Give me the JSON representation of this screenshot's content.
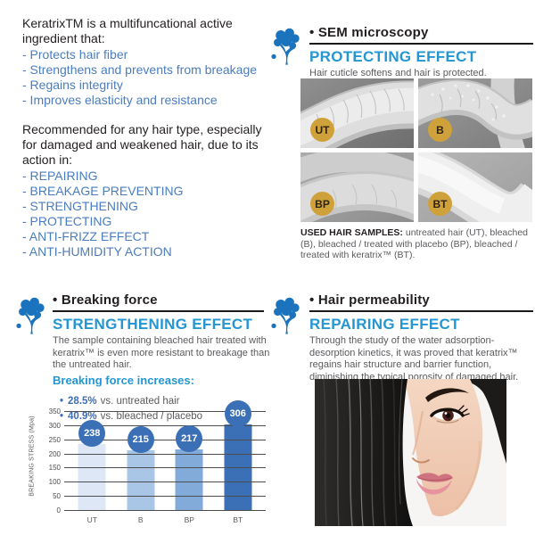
{
  "ui": {
    "bullet": "•"
  },
  "intro": {
    "para1": "KeratrixTM is a multifuncational active ingredient that:",
    "list1": [
      "- Protects hair fiber",
      "- Strengthens and prevents from breakage",
      "- Regains integrity",
      "- Improves elasticity and resistance"
    ],
    "para2": "Recommended for any hair type, especially for damaged and weakened hair, due to its action in:",
    "list2": [
      "- REPAIRING",
      "- BREAKAGE PREVENTING",
      "- STRENGTHENING",
      "- PROTECTING",
      "- ANTI-FRIZZ EFFECT",
      "- ANTI-HUMIDITY ACTION"
    ]
  },
  "sem_section": {
    "header": "SEM microscopy",
    "effect_title": "PROTECTING EFFECT",
    "subtitle": "Hair cuticle softens and hair is protected.",
    "samples": [
      {
        "label": "UT"
      },
      {
        "label": "B"
      },
      {
        "label": "BP"
      },
      {
        "label": "BT"
      }
    ],
    "caption_bold": "USED HAIR SAMPLES:",
    "caption_rest": " untreated hair (UT), bleached (B), bleached / treated with placebo (BP), bleached / treated with keratrix™ (BT)."
  },
  "breaking_section": {
    "header": "Breaking force",
    "effect_title": "STRENGTHENING EFFECT",
    "body": "The sample containing bleached hair treated with keratrix™ is even more resistant to breakage than the untreated hair.",
    "subheading": "Breaking force increases:",
    "bullets": [
      {
        "value": "28.5%",
        "label": "vs. untreated hair"
      },
      {
        "value": "40.9%",
        "label": "vs. bleached / placebo"
      }
    ]
  },
  "permeability_section": {
    "header": "Hair permeability",
    "effect_title": "REPAIRING EFFECT",
    "body": "Through the study of the water adsorption-desorption kinetics, it was proved that keratrix™ regains hair structure and barrier function, diminishing the typical porosity of damaged hair."
  },
  "chart_data": {
    "type": "bar",
    "categories": [
      "UT",
      "B",
      "BP",
      "BT"
    ],
    "values": [
      238,
      215,
      217,
      306
    ],
    "title": "",
    "xlabel": "",
    "ylabel": "BREAKING STRESS (Mpa)",
    "ylim": [
      0,
      350
    ],
    "yticks": [
      0,
      50,
      100,
      150,
      200,
      250,
      300,
      350
    ],
    "grid": true,
    "legend": false,
    "bar_colors": [
      "#dde7f5",
      "#a9c6e6",
      "#82abd9",
      "#3b6fb6"
    ],
    "badge_color": "#3b6fb6"
  },
  "colors": {
    "heading_blue": "#2496d2",
    "list_blue": "#4a7dbf",
    "tree_blue": "#1a73bc",
    "text_dark": "#231f20",
    "text_gray": "#5a5b5e",
    "sample_badge_gold": "#cfa13b"
  }
}
